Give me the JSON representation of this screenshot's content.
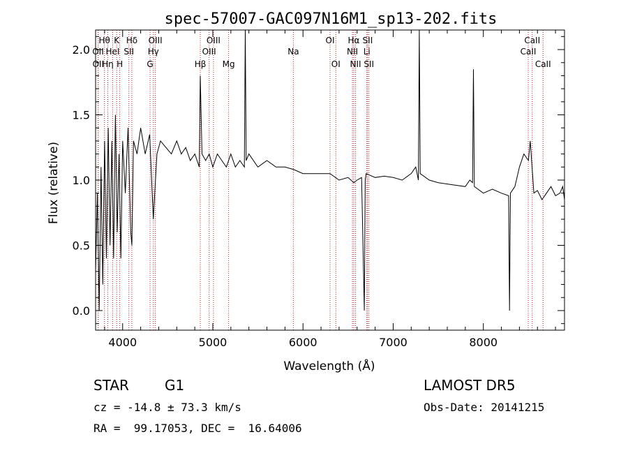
{
  "chart_data": {
    "type": "line",
    "title": "spec-57007-GAC097N16M1_sp13-202.fits",
    "xlabel": "Wavelength (Å)",
    "ylabel": "Flux (relative)",
    "xlim": [
      3700,
      8900
    ],
    "ylim": [
      -0.15,
      2.15
    ],
    "x_ticks": [
      4000,
      5000,
      6000,
      7000,
      8000
    ],
    "y_ticks": [
      0.0,
      0.5,
      1.0,
      1.5,
      2.0
    ],
    "x_tick_labels": [
      "4000",
      "5000",
      "6000",
      "7000",
      "8000"
    ],
    "y_tick_labels": [
      "0.0",
      "0.5",
      "1.0",
      "1.5",
      "2.0"
    ],
    "grid": false,
    "line_color": "#000000",
    "marker_color": "#b22222",
    "series": [
      {
        "x": [
          3700,
          3720,
          3740,
          3760,
          3780,
          3800,
          3820,
          3840,
          3860,
          3880,
          3900,
          3920,
          3940,
          3960,
          3980,
          4000,
          4030,
          4060,
          4090,
          4102,
          4120,
          4160,
          4200,
          4250,
          4300,
          4340,
          4380,
          4420,
          4480,
          4540,
          4600,
          4650,
          4700,
          4750,
          4800,
          4850,
          4861,
          4880,
          4920,
          4960,
          5000,
          5050,
          5100,
          5150,
          5200,
          5250,
          5300,
          5350,
          5360,
          5370,
          5400,
          5500,
          5600,
          5700,
          5800,
          5900,
          6000,
          6100,
          6200,
          6300,
          6400,
          6500,
          6563,
          6600,
          6650,
          6680,
          6690,
          6700,
          6800,
          6900,
          7000,
          7100,
          7200,
          7250,
          7280,
          7290,
          7300,
          7400,
          7500,
          7600,
          7700,
          7800,
          7850,
          7880,
          7890,
          7900,
          8000,
          8100,
          8200,
          8280,
          8290,
          8300,
          8350,
          8400,
          8450,
          8500,
          8520,
          8540,
          8560,
          8600,
          8650,
          8700,
          8750,
          8800,
          8850,
          8880,
          8900
        ],
        "y": [
          0.3,
          0.9,
          0.0,
          1.1,
          0.2,
          1.3,
          0.4,
          1.4,
          0.5,
          1.3,
          0.4,
          1.5,
          0.6,
          1.2,
          0.4,
          1.3,
          0.9,
          1.4,
          0.6,
          0.5,
          1.3,
          1.2,
          1.4,
          1.2,
          1.35,
          0.7,
          1.2,
          1.3,
          1.25,
          1.2,
          1.3,
          1.2,
          1.25,
          1.15,
          1.2,
          1.1,
          1.8,
          1.2,
          1.15,
          1.2,
          1.1,
          1.2,
          1.15,
          1.1,
          1.2,
          1.1,
          1.15,
          1.1,
          2.15,
          1.15,
          1.2,
          1.1,
          1.15,
          1.1,
          1.1,
          1.08,
          1.05,
          1.05,
          1.05,
          1.05,
          1.0,
          1.02,
          0.98,
          1.0,
          1.02,
          0.0,
          1.0,
          1.05,
          1.02,
          1.03,
          1.02,
          1.0,
          1.05,
          1.1,
          1.0,
          2.15,
          1.05,
          1.0,
          0.98,
          0.97,
          0.96,
          0.95,
          1.0,
          0.98,
          1.85,
          0.95,
          0.9,
          0.93,
          0.9,
          0.88,
          0.0,
          0.9,
          0.95,
          1.1,
          1.2,
          1.15,
          1.3,
          1.1,
          0.9,
          0.92,
          0.85,
          0.9,
          0.95,
          0.88,
          0.9,
          0.95,
          0.85
        ]
      }
    ],
    "line_markers": [
      {
        "label": "Hθ",
        "wavelength": 3798,
        "row": 0
      },
      {
        "label": "K",
        "wavelength": 3934,
        "row": 0
      },
      {
        "label": "Hδ",
        "wavelength": 4102,
        "row": 0
      },
      {
        "label": "OIII",
        "wavelength": 4363,
        "row": 0
      },
      {
        "label": "OIII",
        "wavelength": 5007,
        "row": 0
      },
      {
        "label": "OI",
        "wavelength": 6300,
        "row": 0
      },
      {
        "label": "Hα",
        "wavelength": 6563,
        "row": 0
      },
      {
        "label": "SII",
        "wavelength": 6717,
        "row": 0
      },
      {
        "label": "CaII",
        "wavelength": 8542,
        "row": 0
      },
      {
        "label": "OII",
        "wavelength": 3727,
        "row": 1
      },
      {
        "label": "HeI",
        "wavelength": 3889,
        "row": 1
      },
      {
        "label": "SII",
        "wavelength": 4069,
        "row": 1
      },
      {
        "label": "Hγ",
        "wavelength": 4341,
        "row": 1
      },
      {
        "label": "OIII",
        "wavelength": 4959,
        "row": 1
      },
      {
        "label": "Na",
        "wavelength": 5893,
        "row": 1
      },
      {
        "label": "NII",
        "wavelength": 6548,
        "row": 1
      },
      {
        "label": "Li",
        "wavelength": 6708,
        "row": 1
      },
      {
        "label": "CaII",
        "wavelength": 8498,
        "row": 1
      },
      {
        "label": "OII",
        "wavelength": 3729,
        "row": 2
      },
      {
        "label": "Hη",
        "wavelength": 3835,
        "row": 2
      },
      {
        "label": "H",
        "wavelength": 3968,
        "row": 2
      },
      {
        "label": "G",
        "wavelength": 4304,
        "row": 2
      },
      {
        "label": "Hβ",
        "wavelength": 4861,
        "row": 2
      },
      {
        "label": "Mg",
        "wavelength": 5175,
        "row": 2
      },
      {
        "label": "OI",
        "wavelength": 6364,
        "row": 2
      },
      {
        "label": "NII",
        "wavelength": 6583,
        "row": 2
      },
      {
        "label": "SII",
        "wavelength": 6731,
        "row": 2
      },
      {
        "label": "CaII",
        "wavelength": 8662,
        "row": 2
      }
    ]
  },
  "info": {
    "class": "STAR",
    "subclass": "G1",
    "survey": "LAMOST DR5",
    "cz": "cz = -14.8 ± 73.3 km/s",
    "obs_date": "Obs-Date: 20141215",
    "radec": "RA =  99.17053, DEC =  16.64006"
  }
}
